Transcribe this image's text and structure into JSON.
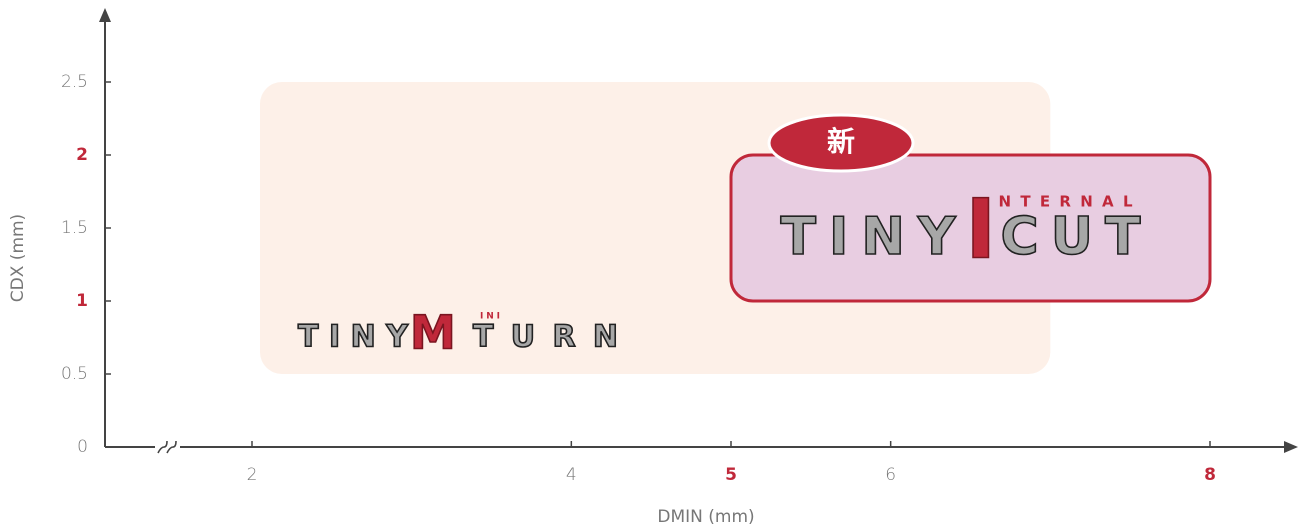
{
  "chart_data": {
    "type": "range",
    "x_label": "DMIN (mm)",
    "y_label": "CDX (mm)",
    "xlim": [
      2,
      8
    ],
    "ylim": [
      0,
      2.5
    ],
    "xticks": [
      2,
      4,
      5,
      6,
      8
    ],
    "yticks": [
      0,
      0.5,
      1,
      1.5,
      2,
      2.5
    ],
    "highlight_xticks": [
      5,
      8
    ],
    "highlight_yticks": [
      1,
      2
    ],
    "regions": [
      {
        "x": [
          2.05,
          7
        ],
        "y": [
          0.5,
          2.5
        ],
        "color": "#fdf0e8",
        "logo": [
          "TINY",
          "M",
          "INI",
          "TURN"
        ]
      },
      {
        "x": [
          5,
          8
        ],
        "y": [
          1,
          2
        ],
        "color": "#e8cde1",
        "border": "#c0283a",
        "badge": "新",
        "logo": [
          "TINY",
          "I",
          "NTERNAL",
          "CUT"
        ]
      }
    ]
  }
}
